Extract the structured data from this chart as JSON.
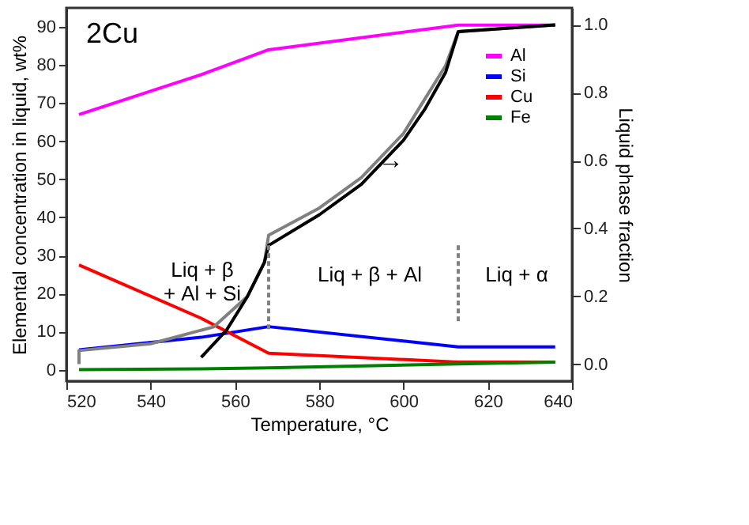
{
  "chart_data": {
    "type": "line",
    "xlabel": "Temperature, °C",
    "ylabel": "Elemental concentration in liquid, wt%",
    "y2label": "Liquid phase fraction",
    "xlim": [
      520,
      640
    ],
    "xticks": [
      520,
      540,
      560,
      580,
      600,
      620,
      640
    ],
    "ylim": [
      -3,
      95
    ],
    "yticks": [
      0,
      10,
      20,
      30,
      40,
      50,
      60,
      70,
      80,
      90
    ],
    "y2lim": [
      -0.05,
      1.05
    ],
    "y2ticks": [
      {
        "value": 0,
        "label": "0.0"
      },
      0.2,
      0.4,
      0.6,
      0.8,
      {
        "value": 1,
        "label": "1.0"
      }
    ],
    "legend": "top right",
    "grid": false,
    "series": [
      {
        "name": "Al",
        "color": "#ff00ff",
        "x": [
          523,
          552,
          568,
          613,
          636
        ],
        "values": [
          67,
          77.5,
          84,
          90.5,
          90.5
        ]
      },
      {
        "name": "Si",
        "color": "#0000ff",
        "x": [
          523,
          552,
          568,
          613,
          636
        ],
        "values": [
          5.2,
          8.5,
          11.3,
          6,
          6
        ]
      },
      {
        "name": "Cu",
        "color": "#ff0000",
        "x": [
          523,
          552,
          568,
          613,
          636
        ],
        "values": [
          27.5,
          13.5,
          4.3,
          2,
          2
        ]
      },
      {
        "name": "Fe",
        "color": "#008000",
        "x": [
          523,
          552,
          568,
          613,
          636
        ],
        "values": [
          0,
          0.2,
          0.5,
          1.5,
          2
        ]
      },
      {
        "color": "#808080",
        "axis": "y2",
        "x": [
          523,
          523,
          540,
          555,
          563,
          567,
          568,
          580,
          590,
          600,
          605,
          610,
          613,
          636
        ],
        "values": [
          0,
          0.04,
          0.06,
          0.11,
          0.2,
          0.3,
          0.38,
          0.46,
          0.55,
          0.68,
          0.78,
          0.88,
          0.98,
          1.0
        ]
      },
      {
        "color": "#000000",
        "axis": "y2",
        "x": [
          552,
          558,
          563,
          567,
          568,
          580,
          590,
          600,
          605,
          610,
          613,
          636
        ],
        "values": [
          0.02,
          0.1,
          0.2,
          0.3,
          0.35,
          0.44,
          0.53,
          0.66,
          0.75,
          0.86,
          0.98,
          1.0
        ]
      },
      {
        "color": "#808080",
        "axis": "y2",
        "line_style": "dashed",
        "x": [
          568,
          568
        ],
        "values": [
          0.35,
          0.1
        ]
      },
      {
        "color": "#808080",
        "axis": "y2",
        "line_style": "dashed",
        "x": [
          613,
          613
        ],
        "values": [
          0.35,
          0.12
        ]
      }
    ],
    "annotations": [
      "2Cu",
      "Liq + β\n+ Al + Si",
      "Liq + β + Al",
      "Liq + α",
      {
        "text": "→",
        "x": 597,
        "y": 55
      }
    ]
  }
}
